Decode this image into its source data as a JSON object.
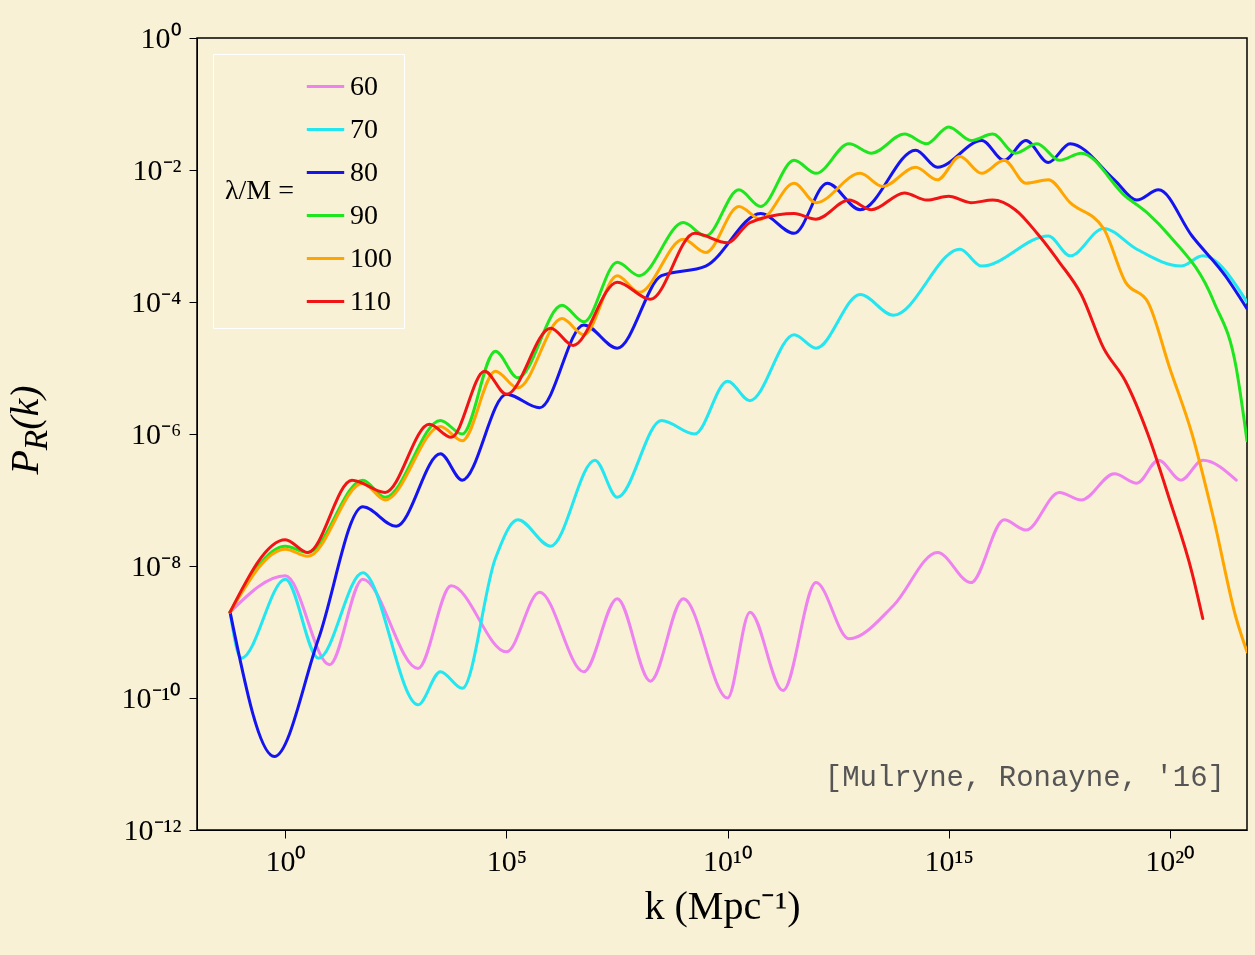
{
  "chart_data": {
    "type": "line",
    "xlabel": "k (Mpc⁻¹)",
    "ylabel": "P$_{R}$(k)",
    "legend_title": "λ/M =",
    "log": "xy",
    "legend": "top left",
    "line_style": "solid",
    "xlim": [
      0.01,
      5.6e+21
    ],
    "ylim": [
      1e-12,
      1
    ],
    "xticks": [
      {
        "value": 1,
        "label": "10⁰"
      },
      {
        "value": 100000.0,
        "label": "10⁵"
      },
      {
        "value": 10000000000.0,
        "label": "10¹⁰"
      },
      {
        "value": 1000000000000000.0,
        "label": "10¹⁵"
      },
      {
        "value": 1e+20,
        "label": "10²⁰"
      }
    ],
    "yticks": [
      {
        "value": 1e-12,
        "label": "10⁻¹²"
      },
      {
        "value": 1e-10,
        "label": "10⁻¹⁰"
      },
      {
        "value": 1e-08,
        "label": "10⁻⁸"
      },
      {
        "value": 1e-06,
        "label": "10⁻⁶"
      },
      {
        "value": 0.0001,
        "label": "10⁻⁴"
      },
      {
        "value": 0.01,
        "label": "10⁻²"
      },
      {
        "value": 1,
        "label": "10⁰"
      }
    ],
    "annotations": [
      "[Mulryne, Ronayne, '16]"
    ],
    "series": [
      {
        "name": "60",
        "color": "#ee82ee",
        "x": [
          0.056,
          1,
          10,
          56,
          1000.0,
          5600.0,
          100000.0,
          560000.0,
          5600000.0,
          32000000.0,
          180000000.0,
          1000000000.0,
          10000000000.0,
          32000000000.0,
          180000000000.0,
          1000000000000.0,
          5600000000000.0,
          56000000000000.0,
          560000000000000.0,
          3200000000000000.0,
          1.8e+16,
          5.6e+16,
          3.2e+17,
          1e+18,
          5.6e+18,
          1.8e+19,
          5.6e+19,
          1.8e+20,
          5.6e+20,
          3.2e+21
        ],
        "values": [
          2e-09,
          7.1e-09,
          3.2e-10,
          6.3e-09,
          2.8e-10,
          5e-09,
          5e-10,
          4e-09,
          2.5e-10,
          3.2e-09,
          1.8e-10,
          3.2e-09,
          1e-10,
          2e-09,
          1.3e-10,
          5.6e-09,
          7.9e-10,
          2.5e-09,
          1.6e-08,
          5.6e-09,
          5e-08,
          3.5e-08,
          1.3e-07,
          1e-07,
          2.5e-07,
          1.8e-07,
          4e-07,
          2e-07,
          4e-07,
          2e-07
        ]
      },
      {
        "name": "70",
        "color": "#22e6f0",
        "x": [
          0.056,
          0.1,
          1,
          5.6,
          56,
          1000.0,
          3200.0,
          10000.0,
          56000.0,
          180000.0,
          1000000.0,
          10000000.0,
          32000000.0,
          320000000.0,
          1800000000.0,
          10000000000.0,
          32000000000.0,
          320000000000.0,
          1000000000000.0,
          10000000000000.0,
          56000000000000.0,
          1800000000000000.0,
          5600000000000000.0,
          1.8e+17,
          5.6e+17,
          3.2e+18,
          1.8e+19,
          1.8e+20,
          5.6e+20,
          5.6e+21
        ],
        "values": [
          2e-09,
          4e-10,
          6.3e-09,
          4e-10,
          7.9e-09,
          7.9e-11,
          2.5e-10,
          1.4e-10,
          1.3e-08,
          5e-08,
          2e-08,
          4e-07,
          1.1e-07,
          1.6e-06,
          1e-06,
          6.3e-06,
          3.2e-06,
          3.2e-05,
          2e-05,
          0.00013,
          6.3e-05,
          0.00063,
          0.00035,
          0.001,
          0.0005,
          0.0013,
          0.00063,
          0.00035,
          0.0005,
          0.0001
        ]
      },
      {
        "name": "80",
        "color": "#1414f0",
        "x": [
          0.056,
          0.56,
          5.6,
          56,
          320.0,
          3200.0,
          10000.0,
          100000.0,
          560000.0,
          5600000.0,
          32000000.0,
          320000000.0,
          3200000000.0,
          56000000000.0,
          320000000000.0,
          1800000000000.0,
          10000000000000.0,
          180000000000000.0,
          560000000000000.0,
          5600000000000000.0,
          1.8e+16,
          5.6e+16,
          1.8e+17,
          5.6e+17,
          5.6e+18,
          1.8e+19,
          5.6e+19,
          3.2e+20,
          1.8e+21,
          5.6e+21
        ],
        "values": [
          2e-09,
          1.3e-11,
          7.9e-10,
          7.9e-08,
          4e-08,
          5e-07,
          2e-07,
          4e-06,
          2.5e-06,
          4.5e-05,
          2e-05,
          0.00025,
          0.00035,
          0.0022,
          0.0011,
          0.0063,
          0.0025,
          0.02,
          0.011,
          0.028,
          0.014,
          0.028,
          0.013,
          0.025,
          0.0071,
          0.0035,
          0.005,
          0.001,
          0.00025,
          7.9e-05
        ]
      },
      {
        "name": "90",
        "color": "#1ee61e",
        "x": [
          0.056,
          1,
          3.2,
          56,
          180.0,
          3200.0,
          10000.0,
          56000.0,
          180000.0,
          1800000.0,
          5600000.0,
          32000000.0,
          100000000.0,
          1000000000.0,
          3200000000.0,
          18000000000.0,
          56000000000.0,
          320000000000.0,
          1000000000000.0,
          5600000000000.0,
          18000000000000.0,
          100000000000000.0,
          320000000000000.0,
          1000000000000000.0,
          3200000000000000.0,
          1e+16,
          3.2e+16,
          1e+17,
          3.2e+17,
          1e+18,
          1e+19,
          3.2e+19,
          1e+20,
          1e+21,
          3.2e+21,
          5.6e+21
        ],
        "values": [
          2e-09,
          2e-08,
          1.6e-08,
          2e-07,
          1.1e-07,
          1.6e-06,
          1e-06,
          1.8e-05,
          7.1e-06,
          8.9e-05,
          5e-05,
          0.0004,
          0.00025,
          0.0016,
          0.001,
          0.005,
          0.0028,
          0.014,
          0.0089,
          0.025,
          0.018,
          0.035,
          0.025,
          0.045,
          0.028,
          0.035,
          0.018,
          0.025,
          0.014,
          0.018,
          0.004,
          0.0022,
          0.001,
          0.0001,
          1e-05,
          7.9e-07
        ]
      },
      {
        "name": "100",
        "color": "#ffa500",
        "x": [
          0.056,
          1,
          3.2,
          56,
          180.0,
          3200.0,
          10000.0,
          56000.0,
          180000.0,
          1800000.0,
          5600000.0,
          32000000.0,
          100000000.0,
          1000000000.0,
          3200000000.0,
          18000000000.0,
          56000000000.0,
          320000000000.0,
          1000000000000.0,
          10000000000000.0,
          32000000000000.0,
          180000000000000.0,
          560000000000000.0,
          1800000000000000.0,
          5600000000000000.0,
          1.8e+16,
          5.6e+16,
          1.8e+17,
          5.6e+17,
          3.2e+18,
          1e+19,
          3.2e+19,
          1e+20,
          3.2e+20,
          1e+21,
          3.2e+21,
          5.6e+21
        ],
        "values": [
          2e-09,
          1.8e-08,
          1.4e-08,
          1.8e-07,
          1e-07,
          1.3e-06,
          7.9e-07,
          8.9e-06,
          5e-06,
          5.6e-05,
          3.2e-05,
          0.00025,
          0.00014,
          0.00089,
          0.00056,
          0.0028,
          0.0018,
          0.0063,
          0.0032,
          0.0089,
          0.0056,
          0.011,
          0.0071,
          0.016,
          0.0089,
          0.014,
          0.0063,
          0.0071,
          0.0032,
          0.0013,
          0.0002,
          0.0001,
          1e-05,
          1e-06,
          5e-08,
          1.6e-09,
          5e-10
        ]
      },
      {
        "name": "110",
        "color": "#f01414",
        "x": [
          0.056,
          1,
          3.2,
          32,
          180.0,
          1800.0,
          5600.0,
          32000.0,
          100000.0,
          1000000.0,
          3200000.0,
          32000000.0,
          180000000.0,
          1800000000.0,
          10000000000.0,
          32000000000.0,
          320000000000.0,
          1000000000000.0,
          5600000000000.0,
          18000000000000.0,
          100000000000000.0,
          320000000000000.0,
          1000000000000000.0,
          3200000000000000.0,
          1e+16,
          3.2e+16,
          1e+17,
          3.2e+17,
          1e+18,
          3.2e+18,
          1e+19,
          3.2e+19,
          1e+20,
          3.2e+20,
          5.6e+20
        ],
        "values": [
          2e-09,
          2.5e-08,
          1.6e-08,
          2e-07,
          1.3e-07,
          1.4e-06,
          8.9e-07,
          8.9e-06,
          4e-06,
          4e-05,
          2.2e-05,
          0.0002,
          0.00011,
          0.0011,
          0.00079,
          0.0016,
          0.0022,
          0.0018,
          0.0035,
          0.0025,
          0.0045,
          0.0035,
          0.004,
          0.0032,
          0.0035,
          0.0025,
          0.0011,
          0.0004,
          0.00013,
          2e-05,
          6.3e-06,
          1e-06,
          1e-07,
          7.9e-09,
          1.6e-09
        ]
      }
    ]
  }
}
